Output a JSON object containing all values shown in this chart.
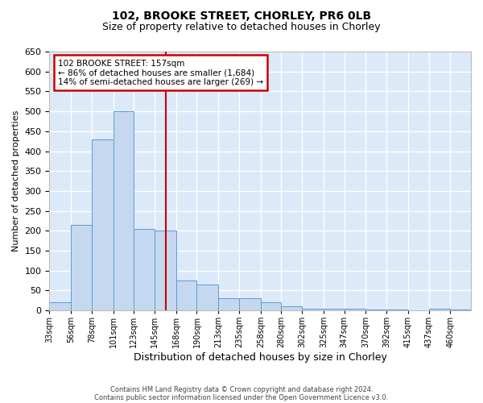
{
  "title1": "102, BROOKE STREET, CHORLEY, PR6 0LB",
  "title2": "Size of property relative to detached houses in Chorley",
  "xlabel": "Distribution of detached houses by size in Chorley",
  "ylabel": "Number of detached properties",
  "footnote1": "Contains HM Land Registry data © Crown copyright and database right 2024.",
  "footnote2": "Contains public sector information licensed under the Open Government Licence v3.0.",
  "annotation_line1": "102 BROOKE STREET: 157sqm",
  "annotation_line2": "← 86% of detached houses are smaller (1,684)",
  "annotation_line3": "14% of semi-detached houses are larger (269) →",
  "property_size": 157,
  "bar_color": "#c5d8f0",
  "bar_edge_color": "#5b9bd5",
  "vline_color": "#cc0000",
  "background_color": "#dce9f8",
  "grid_color": "#ffffff",
  "fig_bg_color": "#ffffff",
  "bins": [
    33,
    56,
    78,
    101,
    123,
    145,
    168,
    190,
    213,
    235,
    258,
    280,
    302,
    325,
    347,
    370,
    392,
    415,
    437,
    460,
    482
  ],
  "counts": [
    20,
    215,
    430,
    500,
    205,
    200,
    75,
    65,
    30,
    30,
    20,
    10,
    5,
    5,
    5,
    2,
    2,
    0,
    5,
    2
  ],
  "ylim": [
    0,
    650
  ],
  "yticks": [
    0,
    50,
    100,
    150,
    200,
    250,
    300,
    350,
    400,
    450,
    500,
    550,
    600,
    650
  ]
}
